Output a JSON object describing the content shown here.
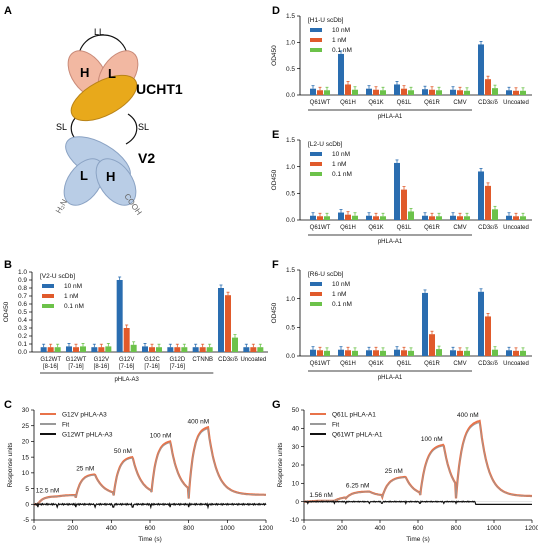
{
  "panel_labels": [
    "A",
    "B",
    "C",
    "D",
    "E",
    "F",
    "G"
  ],
  "schematic": {
    "ll": "LL",
    "sl_left": "SL",
    "sl_right": "SL",
    "h_top": "H",
    "l_top": "L",
    "h_bottom": "H",
    "l_bottom": "L",
    "ucht1": "UCHT1",
    "v2": "V2",
    "h2n": "H₂N",
    "cooh": "COOH",
    "colors": {
      "ucht1_heavy": "#e8a91b",
      "ucht1_light": "#f2b8a2",
      "v2": "#b9cde6"
    }
  },
  "colors": {
    "c10": "#2a6db0",
    "c1": "#e05a2b",
    "c01": "#6cc24a",
    "fit": "#999999",
    "wt": "#111111",
    "spr": "#e8734a"
  },
  "chart_data": [
    {
      "id": "B",
      "type": "bar",
      "title": "[V2-U scDb]",
      "ylabel": "OD450",
      "ylim": [
        0,
        1.0
      ],
      "yticks": [
        "0.0",
        "0.1",
        "0.2",
        "0.3",
        "0.4",
        "0.5",
        "0.6",
        "0.7",
        "0.8",
        "0.9",
        "1.0"
      ],
      "categories": [
        [
          "G12WT",
          "[8-16]"
        ],
        [
          "G12WT",
          "[7-16]"
        ],
        [
          "G12V",
          "[8-16]"
        ],
        [
          "G12V",
          "[7-16]"
        ],
        [
          "G12C",
          "[7-16]"
        ],
        [
          "G12D",
          "[7-16]"
        ],
        [
          "CTNNB",
          ""
        ],
        [
          "CD3ε/δ",
          ""
        ],
        [
          "Uncoated",
          ""
        ]
      ],
      "series": [
        {
          "name": "10 nM",
          "values": [
            0.06,
            0.07,
            0.06,
            0.9,
            0.07,
            0.06,
            0.06,
            0.8,
            0.06
          ]
        },
        {
          "name": "1 nM",
          "values": [
            0.06,
            0.06,
            0.06,
            0.3,
            0.06,
            0.06,
            0.06,
            0.71,
            0.06
          ]
        },
        {
          "name": "0.1 nM",
          "values": [
            0.06,
            0.07,
            0.07,
            0.09,
            0.06,
            0.06,
            0.06,
            0.18,
            0.06
          ]
        }
      ],
      "group_label": "pHLA-A3",
      "group_span": [
        0,
        6
      ]
    },
    {
      "id": "D",
      "type": "bar",
      "title": "[H1-U scDb]",
      "ylabel": "OD450",
      "ylim": [
        0,
        1.5
      ],
      "yticks": [
        "0.0",
        "0.5",
        "1.0",
        "1.5"
      ],
      "categories": [
        [
          "Q61WT",
          ""
        ],
        [
          "Q61H",
          ""
        ],
        [
          "Q61K",
          ""
        ],
        [
          "Q61L",
          ""
        ],
        [
          "Q61R",
          ""
        ],
        [
          "CMV",
          ""
        ],
        [
          "CD3ε/δ",
          ""
        ],
        [
          "Uncoated",
          ""
        ]
      ],
      "series": [
        {
          "name": "10 nM",
          "values": [
            0.12,
            0.78,
            0.12,
            0.2,
            0.11,
            0.1,
            0.96,
            0.09
          ]
        },
        {
          "name": "1 nM",
          "values": [
            0.09,
            0.2,
            0.1,
            0.12,
            0.1,
            0.09,
            0.3,
            0.08
          ]
        },
        {
          "name": "0.1 nM",
          "values": [
            0.09,
            0.1,
            0.09,
            0.09,
            0.09,
            0.08,
            0.13,
            0.08
          ]
        }
      ],
      "group_label": "pHLA-A1",
      "group_span": [
        0,
        5
      ]
    },
    {
      "id": "E",
      "type": "bar",
      "title": "[L2-U scDb]",
      "ylabel": "OD450",
      "ylim": [
        0,
        1.5
      ],
      "yticks": [
        "0.0",
        "0.5",
        "1.0",
        "1.5"
      ],
      "categories": [
        [
          "Q61WT",
          ""
        ],
        [
          "Q61H",
          ""
        ],
        [
          "Q61K",
          ""
        ],
        [
          "Q61L",
          ""
        ],
        [
          "Q61R",
          ""
        ],
        [
          "CMV",
          ""
        ],
        [
          "CD3ε/δ",
          ""
        ],
        [
          "Uncoated",
          ""
        ]
      ],
      "series": [
        {
          "name": "10 nM",
          "values": [
            0.08,
            0.14,
            0.08,
            1.07,
            0.08,
            0.08,
            0.91,
            0.08
          ]
        },
        {
          "name": "1 nM",
          "values": [
            0.07,
            0.1,
            0.07,
            0.57,
            0.07,
            0.07,
            0.64,
            0.07
          ]
        },
        {
          "name": "0.1 nM",
          "values": [
            0.07,
            0.08,
            0.07,
            0.16,
            0.07,
            0.07,
            0.2,
            0.07
          ]
        }
      ],
      "group_label": "pHLA-A1",
      "group_span": [
        0,
        5
      ]
    },
    {
      "id": "F",
      "type": "bar",
      "title": "[R6-U scDb]",
      "ylabel": "OD450",
      "ylim": [
        0,
        1.5
      ],
      "yticks": [
        "0.0",
        "0.5",
        "1.0",
        "1.5"
      ],
      "categories": [
        [
          "Q61WT",
          ""
        ],
        [
          "Q61H",
          ""
        ],
        [
          "Q61K",
          ""
        ],
        [
          "Q61L",
          ""
        ],
        [
          "Q61R",
          ""
        ],
        [
          "CMV",
          ""
        ],
        [
          "CD3ε/δ",
          ""
        ],
        [
          "Uncoated",
          ""
        ]
      ],
      "series": [
        {
          "name": "10 nM",
          "values": [
            0.11,
            0.11,
            0.1,
            0.11,
            1.1,
            0.1,
            1.12,
            0.1
          ]
        },
        {
          "name": "1 nM",
          "values": [
            0.1,
            0.1,
            0.1,
            0.1,
            0.38,
            0.09,
            0.69,
            0.09
          ]
        },
        {
          "name": "0.1 nM",
          "values": [
            0.09,
            0.09,
            0.09,
            0.09,
            0.12,
            0.09,
            0.11,
            0.09
          ]
        }
      ],
      "group_label": "pHLA-A1",
      "group_span": [
        0,
        5
      ]
    },
    {
      "id": "C",
      "type": "line",
      "xlabel": "Time (s)",
      "ylabel": "Response units",
      "xlim": [
        0,
        1200
      ],
      "ylim": [
        -5,
        30
      ],
      "xticks": [
        0,
        200,
        400,
        600,
        800,
        1000,
        1200
      ],
      "yticks": [
        -5,
        0,
        5,
        10,
        15,
        20,
        25,
        30
      ],
      "legend": [
        "G12V pHLA-A3",
        "Fit",
        "G12WT pHLA-A3"
      ],
      "injections": [
        {
          "conc": "12.5 nM",
          "start": 20,
          "end": 120,
          "peak": 2.5
        },
        {
          "conc": "25 nM",
          "start": 215,
          "end": 315,
          "peak": 9.5
        },
        {
          "conc": "50 nM",
          "start": 410,
          "end": 510,
          "peak": 15
        },
        {
          "conc": "100 nM",
          "start": 605,
          "end": 705,
          "peak": 20
        },
        {
          "conc": "400 nM",
          "start": 800,
          "end": 900,
          "peak": 24.5
        }
      ],
      "decay_floor": 3.0
    },
    {
      "id": "G",
      "type": "line",
      "xlabel": "Time (s)",
      "ylabel": "Response units",
      "xlim": [
        0,
        1200
      ],
      "ylim": [
        -10,
        50
      ],
      "xticks": [
        0,
        200,
        400,
        600,
        800,
        1000,
        1200
      ],
      "yticks": [
        -10,
        0,
        10,
        20,
        30,
        40,
        50
      ],
      "legend": [
        "Q61L pHLA-A1",
        "Fit",
        "Q61WT pHLA-A1"
      ],
      "injections": [
        {
          "conc": "1.56 nM",
          "start": 20,
          "end": 160,
          "peak": 0.5
        },
        {
          "conc": "6.25 nM",
          "start": 220,
          "end": 345,
          "peak": 5.5
        },
        {
          "conc": "25 nM",
          "start": 410,
          "end": 535,
          "peak": 13.5
        },
        {
          "conc": "100 nM",
          "start": 610,
          "end": 735,
          "peak": 31
        },
        {
          "conc": "400 nM",
          "start": 800,
          "end": 925,
          "peak": 44
        }
      ],
      "decay_floor": 3.0
    }
  ]
}
